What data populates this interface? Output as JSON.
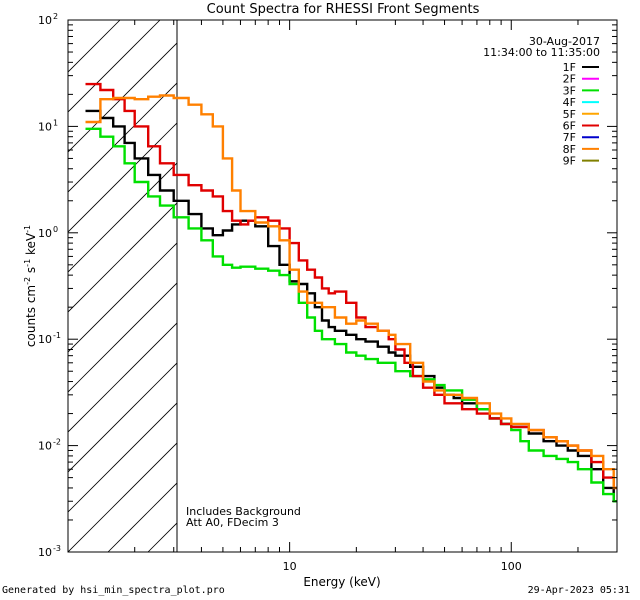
{
  "chart_data": {
    "type": "line",
    "title": "Count Spectra for RHESSI Front Segments",
    "xlabel": "Energy (keV)",
    "ylabel_parts": [
      "counts cm",
      "-2",
      " s",
      "-1",
      " keV",
      "-1"
    ],
    "x_scale": "log",
    "y_scale": "log",
    "xlim": [
      1,
      300
    ],
    "ylim": [
      0.001,
      100
    ],
    "x_ticks": [
      {
        "value": 10,
        "label": "10"
      },
      {
        "value": 100,
        "label": "100"
      }
    ],
    "y_ticks": [
      {
        "value": 0.001,
        "base": "10",
        "exp": "-3"
      },
      {
        "value": 0.01,
        "base": "10",
        "exp": "-2"
      },
      {
        "value": 0.1,
        "base": "10",
        "exp": "-1"
      },
      {
        "value": 1,
        "base": "10",
        "exp": "0"
      },
      {
        "value": 10,
        "base": "10",
        "exp": "1"
      },
      {
        "value": 100,
        "base": "10",
        "exp": "2"
      }
    ],
    "shaded_region": {
      "x_range": [
        1,
        3
      ],
      "style": "hatched"
    },
    "date": "30-Aug-2017",
    "time_range": "11:34:00 to 11:35:00",
    "legend": [
      {
        "name": "1F",
        "color": "#000000"
      },
      {
        "name": "2F",
        "color": "#ff00ff"
      },
      {
        "name": "3F",
        "color": "#00e000"
      },
      {
        "name": "4F",
        "color": "#00ffff"
      },
      {
        "name": "5F",
        "color": "#ffa500"
      },
      {
        "name": "6F",
        "color": "#e00000"
      },
      {
        "name": "7F",
        "color": "#0000cc"
      },
      {
        "name": "8F",
        "color": "#ff8000"
      },
      {
        "name": "9F",
        "color": "#808000"
      }
    ],
    "annotations": [
      "Includes Background",
      "Att A0, FDecim 3"
    ],
    "series": [
      {
        "name": "1F",
        "color": "#000000",
        "points": [
          [
            1.2,
            14
          ],
          [
            1.4,
            12
          ],
          [
            1.6,
            10
          ],
          [
            1.8,
            7
          ],
          [
            2,
            5
          ],
          [
            2.3,
            3.5
          ],
          [
            2.6,
            2.5
          ],
          [
            3,
            2
          ],
          [
            3.5,
            1.5
          ],
          [
            4,
            1.1
          ],
          [
            4.5,
            0.95
          ],
          [
            5,
            1.05
          ],
          [
            5.5,
            1.2
          ],
          [
            6,
            1.3
          ],
          [
            7,
            1.15
          ],
          [
            8,
            0.75
          ],
          [
            9,
            0.5
          ],
          [
            10,
            0.35
          ],
          [
            11,
            0.33
          ],
          [
            12,
            0.27
          ],
          [
            13,
            0.2
          ],
          [
            14,
            0.15
          ],
          [
            15,
            0.13
          ],
          [
            16,
            0.12
          ],
          [
            18,
            0.11
          ],
          [
            20,
            0.1
          ],
          [
            22,
            0.095
          ],
          [
            25,
            0.085
          ],
          [
            28,
            0.075
          ],
          [
            30,
            0.07
          ],
          [
            35,
            0.055
          ],
          [
            40,
            0.045
          ],
          [
            45,
            0.035
          ],
          [
            50,
            0.03
          ],
          [
            55,
            0.028
          ],
          [
            60,
            0.025
          ],
          [
            70,
            0.022
          ],
          [
            80,
            0.018
          ],
          [
            90,
            0.016
          ],
          [
            100,
            0.015
          ],
          [
            120,
            0.013
          ],
          [
            140,
            0.011
          ],
          [
            160,
            0.01
          ],
          [
            180,
            0.009
          ],
          [
            200,
            0.008
          ],
          [
            230,
            0.006
          ],
          [
            260,
            0.004
          ],
          [
            290,
            0.003
          ]
        ]
      },
      {
        "name": "3F",
        "color": "#00e000",
        "points": [
          [
            1.2,
            9.5
          ],
          [
            1.4,
            8
          ],
          [
            1.6,
            6.5
          ],
          [
            1.8,
            4.5
          ],
          [
            2,
            3
          ],
          [
            2.3,
            2.2
          ],
          [
            2.6,
            1.8
          ],
          [
            3,
            1.4
          ],
          [
            3.5,
            1.1
          ],
          [
            4,
            0.85
          ],
          [
            4.5,
            0.6
          ],
          [
            5,
            0.5
          ],
          [
            5.5,
            0.47
          ],
          [
            6,
            0.48
          ],
          [
            7,
            0.46
          ],
          [
            8,
            0.44
          ],
          [
            9,
            0.4
          ],
          [
            10,
            0.33
          ],
          [
            11,
            0.22
          ],
          [
            12,
            0.16
          ],
          [
            13,
            0.12
          ],
          [
            14,
            0.1
          ],
          [
            16,
            0.09
          ],
          [
            18,
            0.075
          ],
          [
            20,
            0.07
          ],
          [
            22,
            0.065
          ],
          [
            25,
            0.06
          ],
          [
            30,
            0.05
          ],
          [
            35,
            0.045
          ],
          [
            40,
            0.042
          ],
          [
            45,
            0.037
          ],
          [
            50,
            0.033
          ],
          [
            60,
            0.027
          ],
          [
            70,
            0.022
          ],
          [
            80,
            0.018
          ],
          [
            90,
            0.016
          ],
          [
            100,
            0.014
          ],
          [
            110,
            0.011
          ],
          [
            120,
            0.009
          ],
          [
            140,
            0.008
          ],
          [
            160,
            0.0075
          ],
          [
            180,
            0.007
          ],
          [
            200,
            0.006
          ],
          [
            230,
            0.0045
          ],
          [
            260,
            0.0035
          ],
          [
            290,
            0.003
          ]
        ]
      },
      {
        "name": "6F",
        "color": "#e00000",
        "points": [
          [
            1.2,
            25
          ],
          [
            1.4,
            22
          ],
          [
            1.6,
            18
          ],
          [
            1.8,
            14
          ],
          [
            2,
            10
          ],
          [
            2.3,
            6.5
          ],
          [
            2.6,
            4.5
          ],
          [
            3,
            3.5
          ],
          [
            3.5,
            2.8
          ],
          [
            4,
            2.5
          ],
          [
            4.5,
            2.2
          ],
          [
            5,
            1.6
          ],
          [
            5.5,
            1.3
          ],
          [
            6,
            1.2
          ],
          [
            6.5,
            1.3
          ],
          [
            7,
            1.4
          ],
          [
            8,
            1.3
          ],
          [
            9,
            1.1
          ],
          [
            10,
            0.8
          ],
          [
            11,
            0.55
          ],
          [
            12,
            0.45
          ],
          [
            13,
            0.38
          ],
          [
            14,
            0.3
          ],
          [
            15,
            0.27
          ],
          [
            16,
            0.28
          ],
          [
            18,
            0.22
          ],
          [
            20,
            0.16
          ],
          [
            22,
            0.13
          ],
          [
            25,
            0.12
          ],
          [
            28,
            0.1
          ],
          [
            30,
            0.08
          ],
          [
            33,
            0.06
          ],
          [
            36,
            0.045
          ],
          [
            40,
            0.035
          ],
          [
            45,
            0.03
          ],
          [
            50,
            0.025
          ],
          [
            60,
            0.022
          ],
          [
            70,
            0.02
          ],
          [
            80,
            0.018
          ],
          [
            90,
            0.016
          ],
          [
            100,
            0.015
          ],
          [
            120,
            0.014
          ],
          [
            140,
            0.012
          ],
          [
            160,
            0.011
          ],
          [
            180,
            0.01
          ],
          [
            200,
            0.009
          ],
          [
            230,
            0.007
          ],
          [
            260,
            0.005
          ],
          [
            290,
            0.004
          ]
        ]
      },
      {
        "name": "8F",
        "color": "#ff8000",
        "points": [
          [
            1.2,
            11
          ],
          [
            1.4,
            18
          ],
          [
            1.6,
            18.5
          ],
          [
            1.8,
            18.5
          ],
          [
            2,
            18
          ],
          [
            2.3,
            19
          ],
          [
            2.6,
            19.5
          ],
          [
            3,
            18.5
          ],
          [
            3.5,
            16
          ],
          [
            4,
            13
          ],
          [
            4.5,
            10
          ],
          [
            5,
            5
          ],
          [
            5.5,
            2.5
          ],
          [
            6,
            1.6
          ],
          [
            7,
            1.25
          ],
          [
            8,
            1.15
          ],
          [
            9,
            0.85
          ],
          [
            10,
            0.45
          ],
          [
            11,
            0.28
          ],
          [
            12,
            0.22
          ],
          [
            14,
            0.2
          ],
          [
            16,
            0.16
          ],
          [
            18,
            0.14
          ],
          [
            20,
            0.15
          ],
          [
            22,
            0.14
          ],
          [
            25,
            0.12
          ],
          [
            28,
            0.11
          ],
          [
            30,
            0.09
          ],
          [
            35,
            0.06
          ],
          [
            40,
            0.04
          ],
          [
            45,
            0.033
          ],
          [
            50,
            0.03
          ],
          [
            60,
            0.028
          ],
          [
            70,
            0.025
          ],
          [
            80,
            0.02
          ],
          [
            90,
            0.018
          ],
          [
            100,
            0.016
          ],
          [
            120,
            0.014
          ],
          [
            140,
            0.012
          ],
          [
            160,
            0.011
          ],
          [
            180,
            0.01
          ],
          [
            200,
            0.009
          ],
          [
            230,
            0.008
          ],
          [
            260,
            0.006
          ],
          [
            290,
            0.004
          ]
        ]
      }
    ]
  },
  "footer": {
    "generator": "Generated by hsi_min_spectra_plot.pro",
    "timestamp": "29-Apr-2023 05:31"
  }
}
